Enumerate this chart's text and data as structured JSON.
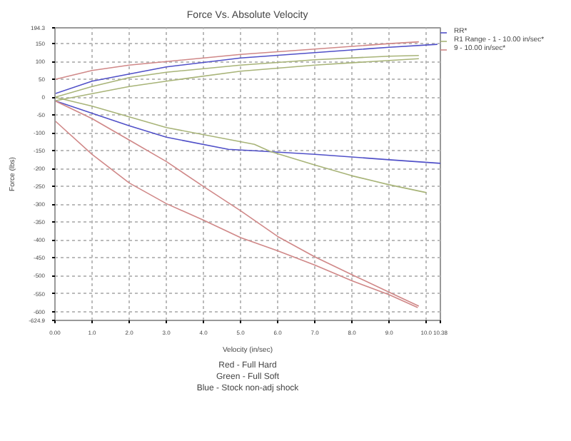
{
  "chart_data": {
    "type": "line",
    "title": "Force Vs. Absolute Velocity",
    "xlabel": "Velocity (in/sec)",
    "ylabel": "Force (lbs)",
    "xlim": [
      0,
      10.38
    ],
    "ylim": [
      -624.9,
      194.3
    ],
    "xticks": [
      {
        "value": 0,
        "label": "0.00"
      },
      {
        "value": 1,
        "label": "1.0"
      },
      {
        "value": 2,
        "label": "2.0"
      },
      {
        "value": 3,
        "label": "3.0"
      },
      {
        "value": 4,
        "label": "4.0"
      },
      {
        "value": 5,
        "label": "5.0"
      },
      {
        "value": 6,
        "label": "6.0"
      },
      {
        "value": 7,
        "label": "7.0"
      },
      {
        "value": 8,
        "label": "8.0"
      },
      {
        "value": 9,
        "label": "9.0"
      },
      {
        "value": 10,
        "label": "10.0"
      },
      {
        "value": 10.38,
        "label": "10.38"
      }
    ],
    "yticks": [
      194.3,
      150,
      100,
      50,
      0,
      -50,
      -100,
      -150,
      -200,
      -250,
      -300,
      -350,
      -400,
      -450,
      -500,
      -550,
      -600,
      -624.9
    ],
    "grid": true,
    "legend": "right",
    "marker": "none",
    "line_style": "solid",
    "series": [
      {
        "name": "RR*",
        "color": "#5050c8",
        "x": [
          0,
          1,
          2,
          3,
          5,
          7,
          9,
          10.3
        ],
        "values": [
          10,
          45,
          65,
          85,
          110,
          125,
          140,
          148
        ]
      },
      {
        "color": "#5050c8",
        "x": [
          0,
          1,
          2,
          3,
          4.67,
          5.37,
          7,
          9,
          10.38
        ],
        "values": [
          -10,
          -45,
          -80,
          -112,
          -146,
          -150,
          -160,
          -175,
          -185
        ]
      },
      {
        "name": "R1 Range - 1 - 10.00 in/sec*",
        "color": "#a8b478",
        "x": [
          0,
          1,
          2,
          3,
          5,
          7,
          9,
          9.8
        ],
        "values": [
          0,
          30,
          55,
          70,
          90,
          105,
          115,
          117
        ]
      },
      {
        "color": "#a8b478",
        "x": [
          0,
          1,
          2,
          3,
          5,
          7,
          9,
          9.8
        ],
        "values": [
          -10,
          10,
          30,
          45,
          73,
          90,
          103,
          108
        ]
      },
      {
        "color": "#a8b478",
        "x": [
          0,
          1,
          2,
          3,
          5.37,
          5.8,
          7,
          8,
          9,
          10
        ],
        "values": [
          0,
          -25,
          -55,
          -85,
          -132,
          -152,
          -190,
          -220,
          -245,
          -267
        ]
      },
      {
        "name": "9 - 10.00 in/sec*",
        "color": "#d08888",
        "x": [
          0,
          1,
          2,
          3,
          5,
          7,
          9,
          9.8
        ],
        "values": [
          50,
          75,
          90,
          100,
          120,
          135,
          150,
          155
        ]
      },
      {
        "color": "#d08888",
        "x": [
          0,
          1,
          2,
          3,
          4,
          5,
          6,
          7,
          8,
          9,
          9.8
        ],
        "values": [
          -10,
          -60,
          -120,
          -180,
          -250,
          -318,
          -390,
          -447,
          -497,
          -546,
          -585
        ]
      },
      {
        "color": "#d08888",
        "x": [
          0,
          1,
          2,
          3,
          4,
          5,
          6,
          7,
          8,
          9,
          9.77
        ],
        "values": [
          -66,
          -160,
          -240,
          -298,
          -344,
          -393,
          -430,
          -470,
          -514,
          -553,
          -589
        ]
      }
    ],
    "annotations": [
      "Blue - Stock non-adj shock",
      "Green - Full Soft",
      "Red - Full Hard"
    ]
  }
}
